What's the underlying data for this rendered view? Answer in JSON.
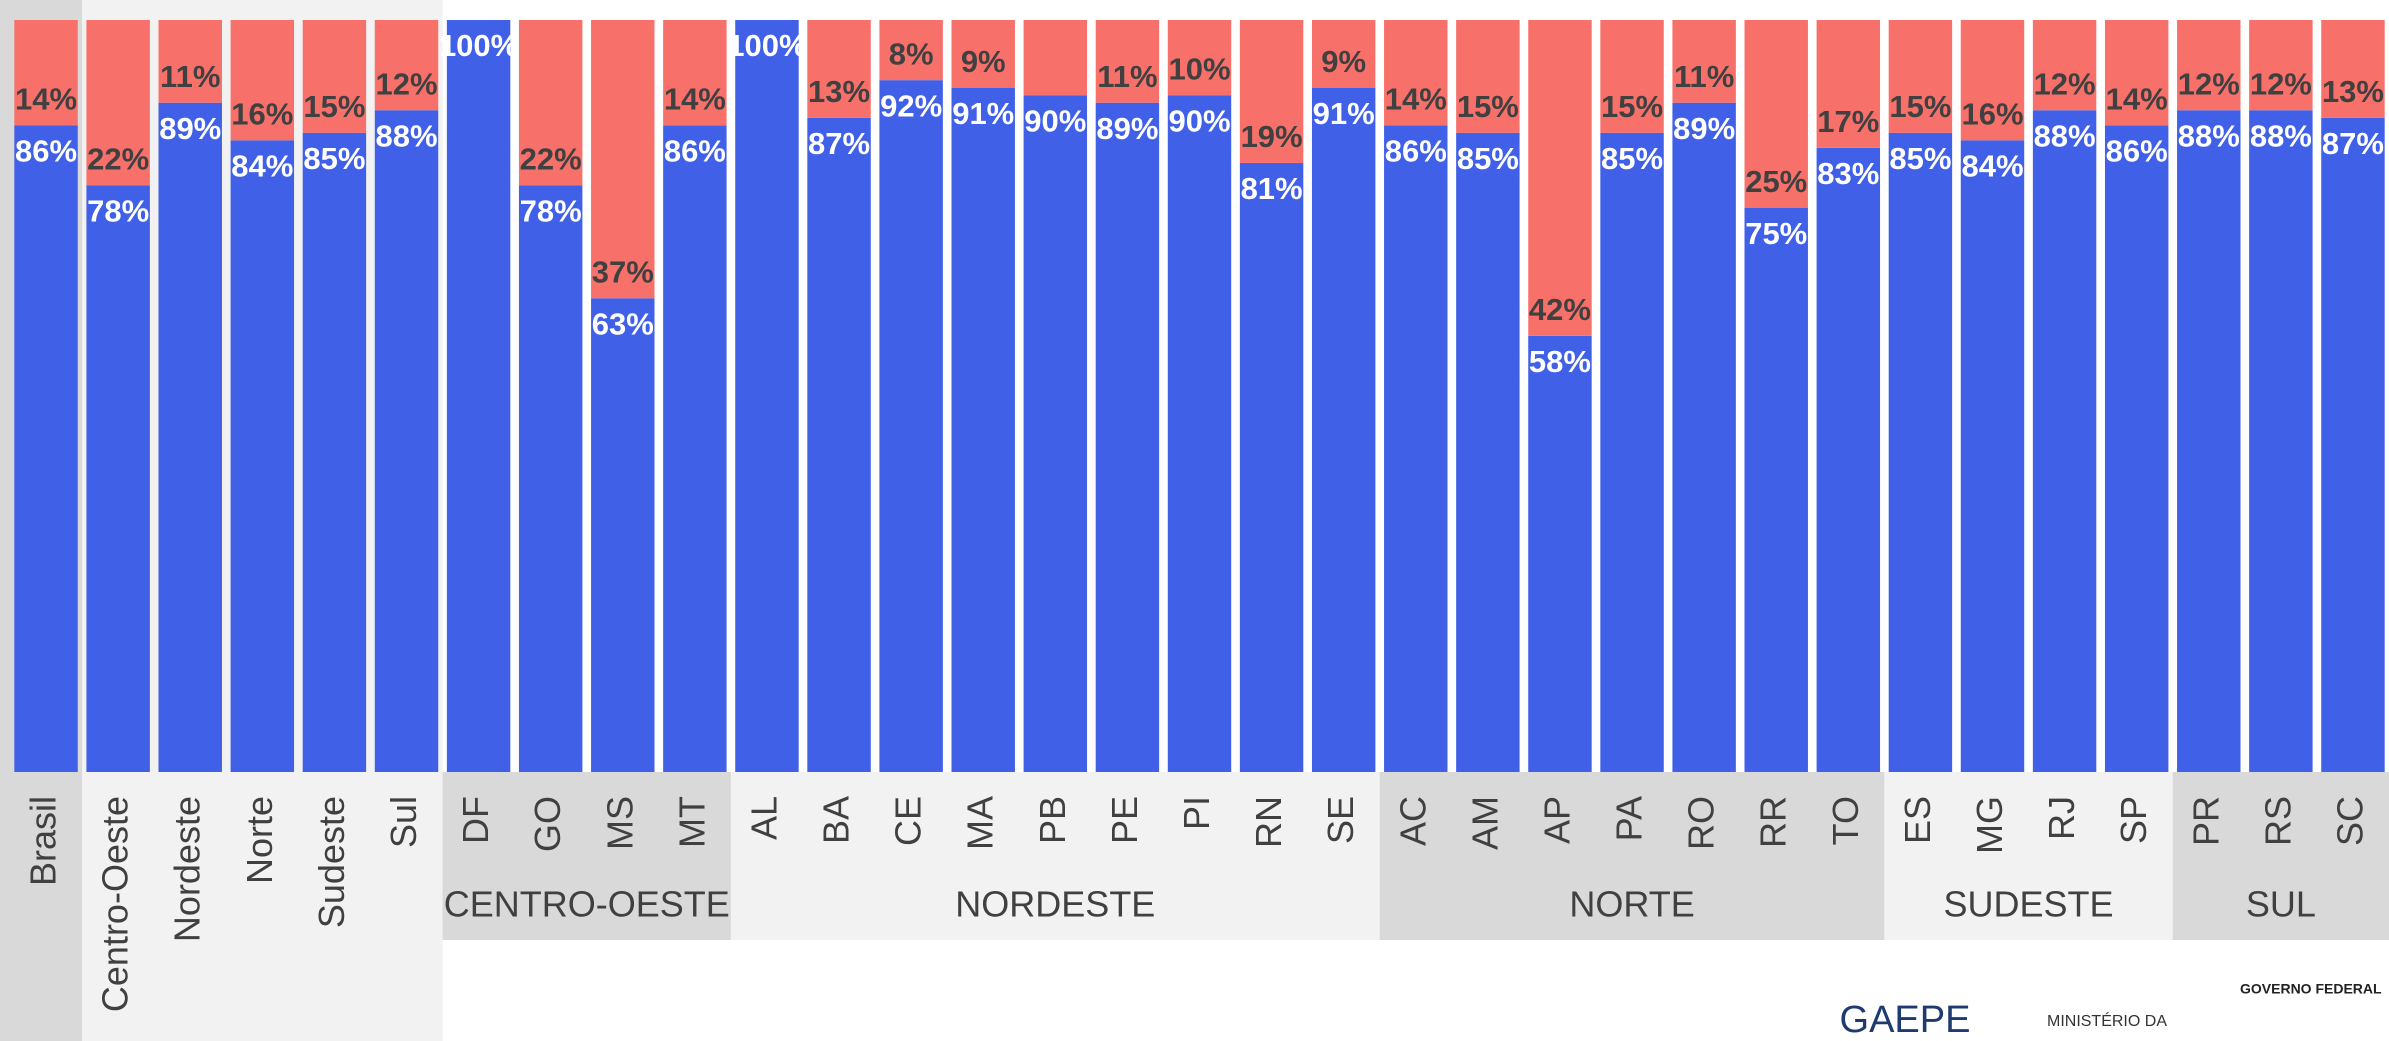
{
  "chart_data": {
    "type": "stacked_bar",
    "categories": [
      "Brasil",
      "Centro-Oeste",
      "Nordeste",
      "Norte",
      "Sudeste",
      "Sul",
      "DF",
      "GO",
      "MS",
      "MT",
      "AL",
      "BA",
      "CE",
      "MA",
      "PB",
      "PE",
      "PI",
      "RN",
      "SE",
      "AC",
      "AM",
      "AP",
      "PA",
      "RO",
      "RR",
      "TO",
      "ES",
      "MG",
      "RJ",
      "SP",
      "PR",
      "RS",
      "SC"
    ],
    "groups": [
      {
        "label": "CENTRO-OESTE",
        "categories": [
          "DF",
          "GO",
          "MS",
          "MT"
        ]
      },
      {
        "label": "NORDESTE",
        "categories": [
          "AL",
          "BA",
          "CE",
          "MA",
          "PB",
          "PE",
          "PI",
          "RN",
          "SE"
        ]
      },
      {
        "label": "NORTE",
        "categories": [
          "AC",
          "AM",
          "AP",
          "PA",
          "RO",
          "RR",
          "TO"
        ]
      },
      {
        "label": "SUDESTE",
        "categories": [
          "ES",
          "MG",
          "RJ",
          "SP"
        ]
      },
      {
        "label": "SUL",
        "categories": [
          "PR",
          "RS",
          "SC"
        ]
      }
    ],
    "ylim": [
      0,
      100
    ],
    "series": [
      {
        "color": "#4060e8",
        "values": [
          86,
          78,
          89,
          84,
          85,
          88,
          100,
          78,
          63,
          86,
          100,
          87,
          92,
          91,
          90,
          89,
          90,
          81,
          91,
          86,
          85,
          58,
          85,
          89,
          75,
          83,
          85,
          84,
          88,
          86,
          88,
          88,
          87
        ],
        "value_labels": [
          "86%",
          "78%",
          "89%",
          "84%",
          "85%",
          "88%",
          "100%",
          "78%",
          "63%",
          "86%",
          "100%",
          "87%",
          "92%",
          "91%",
          "90%",
          "89%",
          "90%",
          "81%",
          "91%",
          "86%",
          "85%",
          "58%",
          "85%",
          "89%",
          "75%",
          "83%",
          "85%",
          "84%",
          "88%",
          "86%",
          "88%",
          "88%",
          "87%"
        ]
      },
      {
        "color": "#f8706a",
        "values": [
          14,
          22,
          11,
          16,
          15,
          12,
          0,
          22,
          37,
          14,
          0,
          13,
          8,
          9,
          10,
          11,
          10,
          19,
          9,
          14,
          15,
          42,
          15,
          11,
          25,
          17,
          15,
          16,
          12,
          14,
          12,
          12,
          13
        ],
        "value_labels": [
          "14%",
          "22%",
          "11%",
          "16%",
          "15%",
          "12%",
          null,
          "22%",
          "37%",
          "14%",
          null,
          "13%",
          "8%",
          "9%",
          null,
          "11%",
          "10%",
          "19%",
          "9%",
          "14%",
          "15%",
          "42%",
          "15%",
          "11%",
          "25%",
          "17%",
          "15%",
          "16%",
          "12%",
          "14%",
          "12%",
          "12%",
          "13%"
        ]
      }
    ]
  },
  "logos": {
    "gaepe": "GAEPE",
    "ministry": "MINISTÉRIO DA",
    "government": "GOVERNO FEDERAL"
  }
}
